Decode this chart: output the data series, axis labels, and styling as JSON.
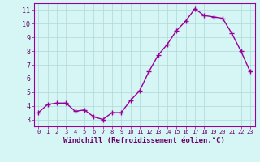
{
  "x": [
    0,
    1,
    2,
    3,
    4,
    5,
    6,
    7,
    8,
    9,
    10,
    11,
    12,
    13,
    14,
    15,
    16,
    17,
    18,
    19,
    20,
    21,
    22,
    23
  ],
  "y": [
    3.5,
    4.1,
    4.2,
    4.2,
    3.6,
    3.7,
    3.2,
    3.0,
    3.5,
    3.5,
    4.4,
    5.1,
    6.5,
    7.7,
    8.5,
    9.5,
    10.2,
    11.1,
    10.6,
    10.5,
    10.4,
    9.3,
    8.0,
    6.5
  ],
  "xlabel": "Windchill (Refroidissement éolien,°C)",
  "xlim": [
    -0.5,
    23.5
  ],
  "ylim": [
    2.5,
    11.5
  ],
  "yticks": [
    3,
    4,
    5,
    6,
    7,
    8,
    9,
    10,
    11
  ],
  "xticks": [
    0,
    1,
    2,
    3,
    4,
    5,
    6,
    7,
    8,
    9,
    10,
    11,
    12,
    13,
    14,
    15,
    16,
    17,
    18,
    19,
    20,
    21,
    22,
    23
  ],
  "line_color": "#990099",
  "marker": "+",
  "marker_size": 4,
  "bg_color": "#d6f5f5",
  "grid_color": "#aed8d8",
  "tick_label_color": "#660066",
  "xlabel_color": "#660066",
  "line_width": 1.0
}
